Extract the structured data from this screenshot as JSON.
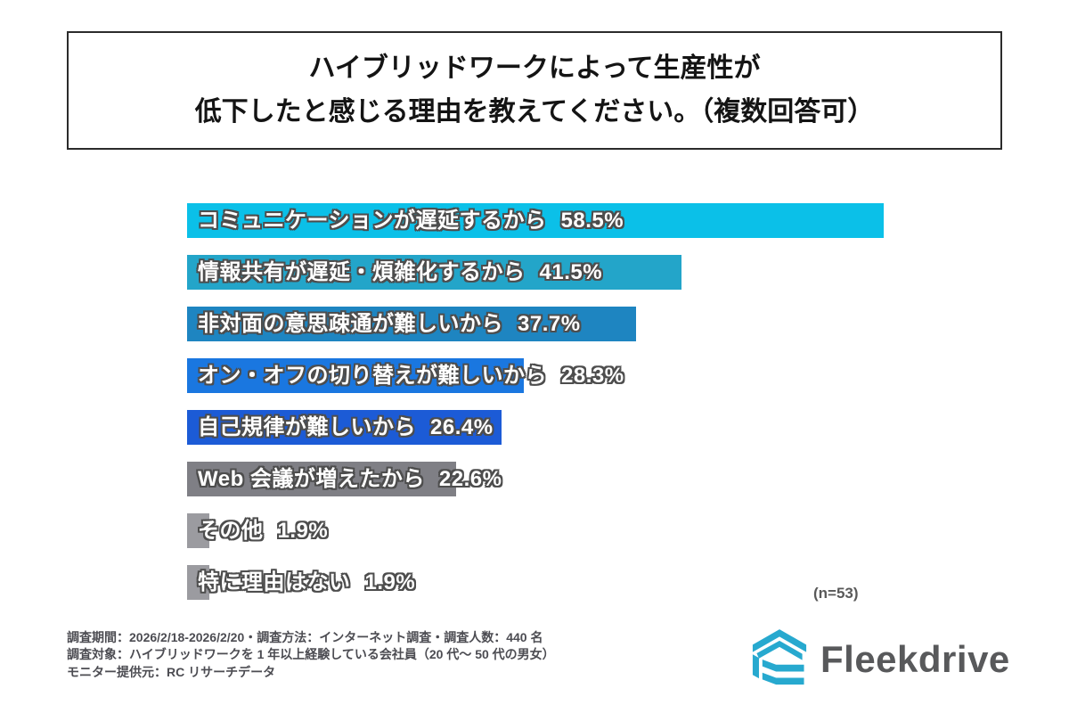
{
  "header": {
    "title_line1": "ハイブリッドワークによって生産性が",
    "title_line2": "低下したと感じる理由を教えてください。（複数回答可）"
  },
  "chart_data": {
    "type": "bar",
    "orientation": "horizontal",
    "title": "ハイブリッドワークによって生産性が低下したと感じる理由を教えてください。（複数回答可）",
    "categories": [
      "コミュニケーションが遅延するから",
      "情報共有が遅延・煩雑化するから",
      "非対面の意思疎通が難しいから",
      "オン・オフの切り替えが難しいから",
      "自己規律が難しいから",
      "Web 会議が増えたから",
      "その他",
      "特に理由はない"
    ],
    "values": [
      58.5,
      41.5,
      37.7,
      28.3,
      26.4,
      22.6,
      1.9,
      1.9
    ],
    "value_labels": [
      "58.5%",
      "41.5%",
      "37.7%",
      "28.3%",
      "26.4%",
      "22.6%",
      "1.9%",
      "1.9%"
    ],
    "bar_colors": [
      "#0bc0e8",
      "#23a5c9",
      "#1e85c1",
      "#1a77e0",
      "#1c5bd6",
      "#7f7f85",
      "#9b9ba0",
      "#9b9ba0"
    ],
    "xlabel": "",
    "ylabel": "",
    "xlim": [
      0,
      60
    ],
    "grid": false,
    "legend": false,
    "value_labels_inline": true,
    "sample_size": "(n=53)"
  },
  "footer": {
    "line1": "調査期間：2026/2/18-2026/2/20・調査方法：インターネット調査・調査人数：440 名",
    "line2": "調査対象：ハイブリッドワークを 1 年以上経験している会社員（20 代〜 50 代の男女）",
    "line3": "モニター提供元：RC リサーチデータ"
  },
  "logo": {
    "name": "Fleekdrive",
    "mark_color": "#27a9cf",
    "text_color": "#58595b"
  }
}
